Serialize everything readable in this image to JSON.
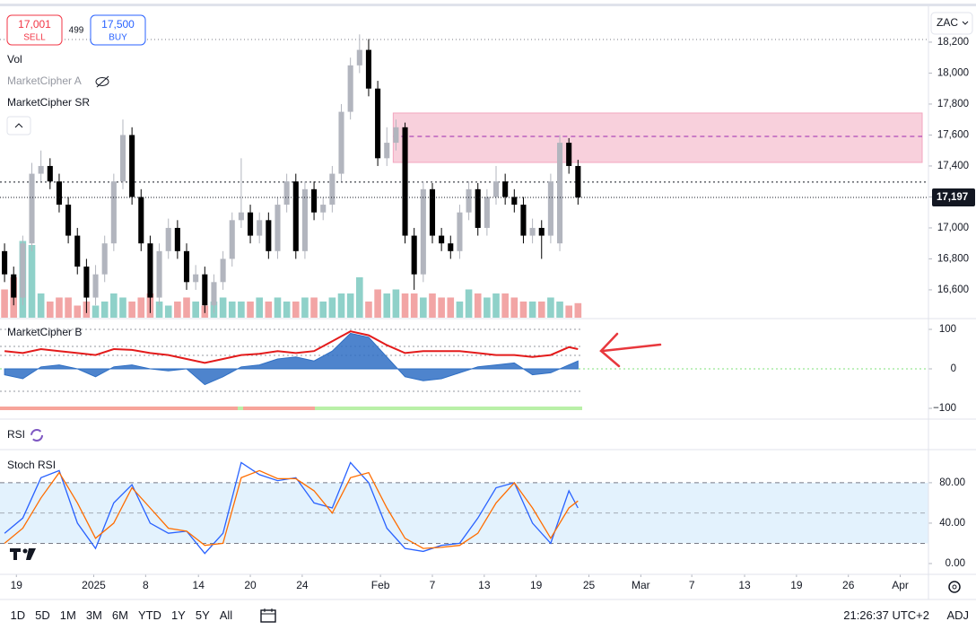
{
  "toolbar": {
    "sell_price": "17,001",
    "sell_label": "SELL",
    "spread": "499",
    "buy_price": "17,500",
    "buy_label": "BUY",
    "currency": "ZAC"
  },
  "indicators": {
    "vol": "Vol",
    "mc_a": "MarketCipher A",
    "mc_sr": "MarketCipher SR",
    "mc_b": "MarketCipher B",
    "rsi": "RSI",
    "stoch": "Stoch RSI"
  },
  "chart_data": [
    {
      "type": "candlestick",
      "x": [
        0,
        1,
        2,
        3,
        4,
        5,
        6,
        7,
        8,
        9,
        10,
        11,
        12,
        13,
        14,
        15,
        16,
        17,
        18,
        19,
        20,
        21,
        22,
        23,
        24,
        25,
        26,
        27,
        28,
        29,
        30,
        31,
        32,
        33,
        34,
        35,
        36,
        37,
        38,
        39,
        40,
        41,
        42,
        43,
        44,
        45,
        46,
        47,
        48,
        49,
        50,
        51,
        52,
        53,
        54,
        55,
        56,
        57,
        58,
        59,
        60,
        61,
        62,
        63
      ],
      "open": [
        16850,
        16700,
        16550,
        16900,
        17350,
        17400,
        17300,
        17150,
        16950,
        16750,
        16550,
        16700,
        16900,
        17300,
        17600,
        17200,
        16900,
        16550,
        16850,
        17000,
        16850,
        16650,
        16700,
        16500,
        16650,
        16800,
        17050,
        17100,
        16950,
        17050,
        16850,
        17150,
        17300,
        16850,
        17250,
        17100,
        17150,
        17350,
        17750,
        18050,
        18150,
        17900,
        17450,
        17550,
        17650,
        16950,
        16700,
        17250,
        16950,
        16900,
        16850,
        17100,
        17250,
        17000,
        17200,
        17300,
        17200,
        17150,
        16950,
        17000,
        16950,
        16900,
        17550,
        17400
      ],
      "high": [
        16900,
        16750,
        16950,
        17420,
        17500,
        17450,
        17350,
        17200,
        17000,
        16800,
        16760,
        16950,
        17350,
        17700,
        17650,
        17250,
        16950,
        16900,
        17060,
        17050,
        16900,
        16760,
        16750,
        16700,
        16850,
        17100,
        17450,
        17150,
        17100,
        17100,
        17200,
        17350,
        17350,
        17300,
        17300,
        17200,
        17400,
        17800,
        18100,
        18250,
        18220,
        17950,
        17650,
        17700,
        17680,
        17000,
        17300,
        17290,
        17000,
        16950,
        17150,
        17300,
        17290,
        17250,
        17400,
        17350,
        17250,
        17200,
        17060,
        17050,
        17350,
        17600,
        17580,
        17440
      ],
      "low": [
        16650,
        16500,
        16500,
        16850,
        17300,
        17250,
        17100,
        16900,
        16700,
        16450,
        16500,
        16650,
        16850,
        17250,
        17150,
        16850,
        16450,
        16500,
        16800,
        16800,
        16600,
        16600,
        16450,
        16450,
        16600,
        16750,
        17000,
        16900,
        16900,
        16800,
        16800,
        17100,
        16800,
        16800,
        17050,
        17050,
        17100,
        17300,
        17700,
        18000,
        17850,
        17400,
        17400,
        17500,
        16900,
        16600,
        16650,
        16900,
        16850,
        16800,
        16800,
        17050,
        16950,
        16950,
        17150,
        17150,
        17100,
        16900,
        16900,
        16800,
        16900,
        16850,
        17350,
        17150
      ],
      "close": [
        16700,
        16550,
        16900,
        17350,
        17400,
        17300,
        17150,
        16950,
        16750,
        16550,
        16700,
        16900,
        17300,
        17600,
        17200,
        16900,
        16550,
        16850,
        17000,
        16850,
        16650,
        16700,
        16500,
        16650,
        16800,
        17050,
        17100,
        16950,
        17050,
        16850,
        17150,
        17300,
        16850,
        17250,
        17100,
        17150,
        17350,
        17750,
        18050,
        18150,
        17900,
        17450,
        17550,
        17650,
        16950,
        16700,
        17250,
        16950,
        16900,
        16850,
        17100,
        17250,
        17000,
        17200,
        17300,
        17200,
        17150,
        16950,
        17000,
        16950,
        17300,
        17550,
        17400,
        17197
      ],
      "volume": [
        35,
        50,
        95,
        90,
        30,
        20,
        25,
        25,
        15,
        20,
        15,
        20,
        30,
        25,
        20,
        25,
        30,
        20,
        15,
        20,
        25,
        20,
        15,
        20,
        25,
        20,
        20,
        20,
        25,
        20,
        25,
        20,
        20,
        25,
        25,
        20,
        25,
        30,
        30,
        50,
        20,
        35,
        30,
        35,
        30,
        30,
        25,
        30,
        25,
        25,
        20,
        35,
        30,
        25,
        30,
        30,
        25,
        20,
        20,
        20,
        25,
        20,
        15,
        18
      ],
      "volume_ylim": [
        0,
        100
      ],
      "up_color": "#b2b5be",
      "down_color": "#000000",
      "volume_up_color": "#8fd1c9",
      "volume_down_color": "#f2a5a5",
      "xlim": [
        -0.5,
        101.5
      ],
      "xticks": [
        {
          "value": 1.3,
          "label": "19"
        },
        {
          "value": 9.8,
          "label": "2025"
        },
        {
          "value": 15.5,
          "label": "8"
        },
        {
          "value": 21.3,
          "label": "14"
        },
        {
          "value": 27,
          "label": "20"
        },
        {
          "value": 32.7,
          "label": "24"
        },
        {
          "value": 41.3,
          "label": "Feb"
        },
        {
          "value": 47,
          "label": "7"
        },
        {
          "value": 52.7,
          "label": "13"
        },
        {
          "value": 58.4,
          "label": "19"
        },
        {
          "value": 64.2,
          "label": "25"
        },
        {
          "value": 69.9,
          "label": "Mar"
        },
        {
          "value": 75.5,
          "label": "7"
        },
        {
          "value": 81.3,
          "label": "13"
        },
        {
          "value": 87,
          "label": "19"
        },
        {
          "value": 92.7,
          "label": "26"
        },
        {
          "value": 98.4,
          "label": "Apr"
        }
      ],
      "ylim": [
        16420,
        18420
      ],
      "yticks": [
        {
          "value": 18200,
          "label": "18,200"
        },
        {
          "value": 18000,
          "label": "18,000"
        },
        {
          "value": 17800,
          "label": "17,800"
        },
        {
          "value": 17600,
          "label": "17,600"
        },
        {
          "value": 17400,
          "label": "17,400"
        },
        {
          "value": 17200,
          "label": "17,200"
        },
        {
          "value": 17000,
          "label": "17,000"
        },
        {
          "value": 16800,
          "label": "16,800"
        },
        {
          "value": 16600,
          "label": "16,600"
        }
      ],
      "last_price": {
        "value": 17197,
        "label": "17,197"
      },
      "levels": [
        17296
      ],
      "zone": {
        "start": 42.7,
        "low": 17423,
        "high": 17742,
        "mid": 17591,
        "color": "#f8d0dc",
        "mid_color": "#9c27b0"
      }
    },
    {
      "type": "oscillator",
      "x": [
        0,
        2,
        4,
        6,
        8,
        10,
        12,
        14,
        16,
        18,
        20,
        22,
        24,
        26,
        28,
        30,
        32,
        34,
        36,
        38,
        40,
        42,
        44,
        46,
        48,
        50,
        52,
        54,
        56,
        58,
        60,
        62,
        63
      ],
      "series": [
        {
          "color": "#2f6fc4",
          "area": true,
          "values": [
            -15,
            -25,
            5,
            10,
            0,
            -20,
            5,
            10,
            0,
            -5,
            0,
            -40,
            -20,
            5,
            10,
            25,
            30,
            20,
            45,
            90,
            80,
            30,
            -20,
            -30,
            -25,
            -10,
            5,
            10,
            15,
            -15,
            -10,
            10,
            20
          ]
        },
        {
          "color": "#e31b1b",
          "values": [
            45,
            40,
            50,
            45,
            40,
            35,
            50,
            48,
            40,
            35,
            25,
            15,
            25,
            35,
            38,
            45,
            40,
            45,
            70,
            95,
            85,
            60,
            40,
            45,
            45,
            45,
            40,
            35,
            35,
            30,
            35,
            55,
            50
          ]
        }
      ],
      "xlim": [
        -0.5,
        101.5
      ],
      "ylim": [
        -122.7,
        122.7
      ],
      "yticks": [
        100,
        0,
        {
          "value": -100,
          "label": "−100"
        }
      ]
    },
    {
      "type": "line",
      "x": [
        0,
        2,
        4,
        6,
        8,
        10,
        12,
        14,
        16,
        18,
        20,
        22,
        24,
        26,
        28,
        30,
        32,
        34,
        36,
        38,
        40,
        42,
        44,
        46,
        48,
        50,
        52,
        54,
        56,
        58,
        60,
        62,
        63
      ],
      "series": [
        {
          "color": "#2962ff",
          "values": [
            30,
            45,
            85,
            92,
            40,
            15,
            60,
            78,
            40,
            30,
            32,
            10,
            30,
            100,
            88,
            82,
            85,
            60,
            55,
            100,
            80,
            35,
            15,
            12,
            18,
            20,
            45,
            75,
            80,
            40,
            20,
            72,
            55
          ]
        },
        {
          "color": "#ff6d00",
          "values": [
            20,
            35,
            65,
            90,
            60,
            25,
            40,
            75,
            55,
            35,
            32,
            18,
            20,
            85,
            92,
            84,
            84,
            72,
            50,
            85,
            90,
            55,
            25,
            15,
            16,
            18,
            30,
            60,
            80,
            55,
            25,
            55,
            62
          ]
        }
      ],
      "band": [
        20,
        80
      ],
      "midline": 50,
      "band_color": "#e3f2fd",
      "xlim": [
        -0.5,
        101.5
      ],
      "ylim": [
        -10.7,
        111
      ],
      "yticks": [
        {
          "value": 80,
          "label": "80.00"
        },
        {
          "value": 40,
          "label": "40.00"
        },
        {
          "value": 0,
          "label": "0.00"
        }
      ]
    }
  ],
  "footer": {
    "ranges": [
      "1D",
      "5D",
      "1M",
      "3M",
      "6M",
      "YTD",
      "1Y",
      "5Y",
      "All"
    ],
    "clock": "21:26:37 UTC+2",
    "adj": "ADJ"
  }
}
